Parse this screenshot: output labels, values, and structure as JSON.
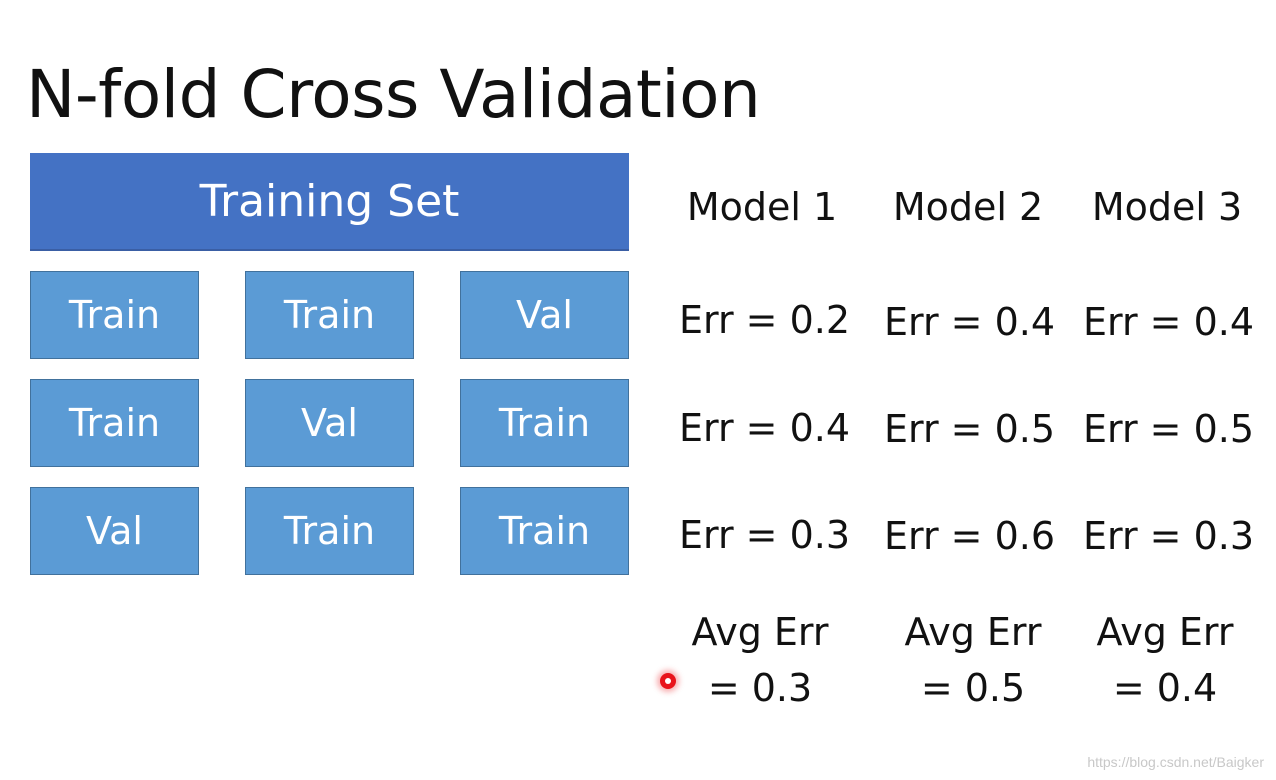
{
  "title": "N-fold Cross Validation",
  "training_set_label": "Training Set",
  "folds": [
    [
      "Train",
      "Train",
      "Val"
    ],
    [
      "Train",
      "Val",
      "Train"
    ],
    [
      "Val",
      "Train",
      "Train"
    ]
  ],
  "models": [
    {
      "name": "Model 1",
      "errors": [
        "Err = 0.2",
        "Err = 0.4",
        "Err = 0.3"
      ],
      "avg_label": "Avg Err",
      "avg_value": "= 0.3"
    },
    {
      "name": "Model 2",
      "errors": [
        "Err = 0.4",
        "Err = 0.5",
        "Err = 0.6"
      ],
      "avg_label": "Avg Err",
      "avg_value": "= 0.5"
    },
    {
      "name": "Model 3",
      "errors": [
        "Err = 0.4",
        "Err = 0.5",
        "Err = 0.3"
      ],
      "avg_label": "Avg Err",
      "avg_value": "= 0.4"
    }
  ],
  "watermark": "https://blog.csdn.net/Baigker",
  "colors": {
    "training_set_fill": "#4472c4",
    "fold_fill": "#5b9bd5",
    "cursor": "#e8141b"
  }
}
